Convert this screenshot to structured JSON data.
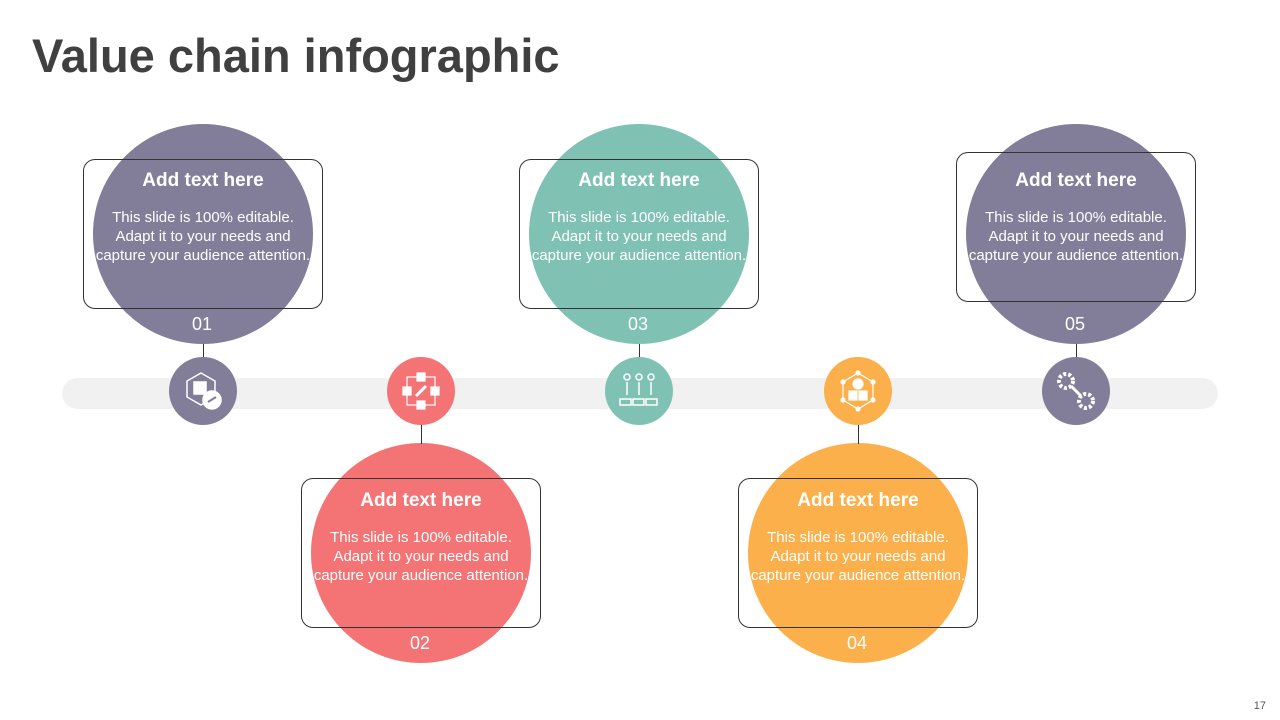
{
  "title": "Value chain infographic",
  "page_number": "17",
  "colors": {
    "purple": "#827e99",
    "red": "#f47475",
    "teal": "#7fc2b4",
    "orange": "#fbb04b",
    "track": "#f1f1f1"
  },
  "steps": [
    {
      "number": "01",
      "heading": "Add text here",
      "body": "This slide is 100% editable. Adapt it to your needs and capture your audience attention.",
      "icon": "supply-network-link-icon",
      "color": "#827e99"
    },
    {
      "number": "02",
      "heading": "Add text here",
      "body": "This slide is 100% editable. Adapt it to your needs and capture your audience attention.",
      "icon": "linked-boxes-network-icon",
      "color": "#f47475"
    },
    {
      "number": "03",
      "heading": "Add text here",
      "body": "This slide is 100% editable. Adapt it to your needs and capture your audience attention.",
      "icon": "chain-targets-icon",
      "color": "#7fc2b4"
    },
    {
      "number": "04",
      "heading": "Add text here",
      "body": "This slide is 100% editable. Adapt it to your needs and capture your audience attention.",
      "icon": "gear-boxes-network-icon",
      "color": "#fbb04b"
    },
    {
      "number": "05",
      "heading": "Add text here",
      "body": "This slide is 100% editable. Adapt it to your needs and capture your audience attention.",
      "icon": "gears-chain-icon",
      "color": "#827e99"
    }
  ]
}
